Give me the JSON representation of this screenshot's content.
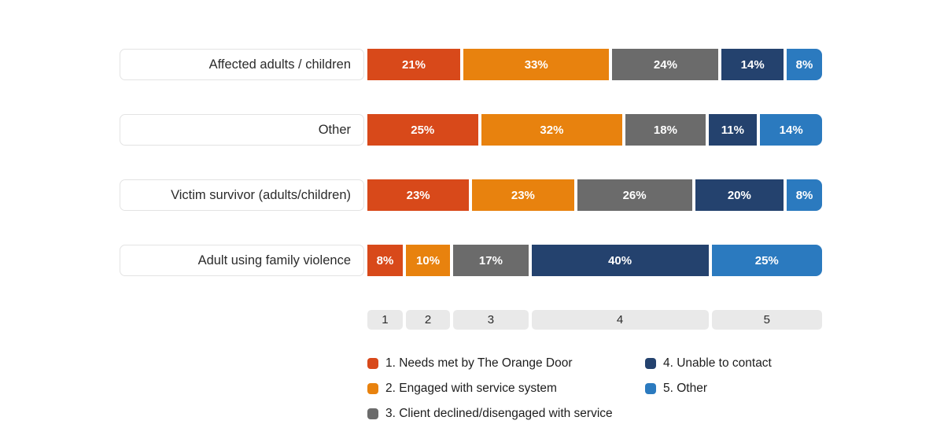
{
  "chart_data": {
    "type": "bar",
    "stacked": true,
    "orientation": "horizontal",
    "categories": [
      "Affected adults / children",
      "Other",
      "Victim survivor (adults/children)",
      "Adult using family violence"
    ],
    "series": [
      {
        "name": "1. Needs met by The Orange Door",
        "color": "#d8491a",
        "values": [
          21,
          25,
          23,
          8
        ]
      },
      {
        "name": "2. Engaged with service system",
        "color": "#e8820e",
        "values": [
          33,
          32,
          23,
          10
        ]
      },
      {
        "name": "3. Client declined/disengaged with service",
        "color": "#6b6b6b",
        "values": [
          24,
          18,
          26,
          17
        ]
      },
      {
        "name": "4. Unable to contact",
        "color": "#24426e",
        "values": [
          14,
          11,
          20,
          40
        ]
      },
      {
        "name": "5. Other",
        "color": "#2b7abf",
        "values": [
          8,
          14,
          8,
          25
        ]
      }
    ],
    "value_suffix": "%",
    "axis_ticks": [
      "1",
      "2",
      "3",
      "4",
      "5"
    ],
    "xlim": [
      0,
      100
    ],
    "grid": false,
    "legend_position": "bottom"
  },
  "display": {
    "rows": [
      {
        "segments": [
          "21%",
          "33%",
          "24%",
          "14%",
          "8%"
        ]
      },
      {
        "segments": [
          "25%",
          "32%",
          "18%",
          "11%",
          "14%"
        ]
      },
      {
        "segments": [
          "23%",
          "23%",
          "26%",
          "20%",
          "8%"
        ]
      },
      {
        "segments": [
          "8%",
          "10%",
          "17%",
          "40%",
          "25%"
        ]
      }
    ]
  },
  "colors": {
    "label_box_border": "#e3e3e3",
    "axis_box_bg": "#e9e9e9",
    "text": "#2b2b2b"
  }
}
